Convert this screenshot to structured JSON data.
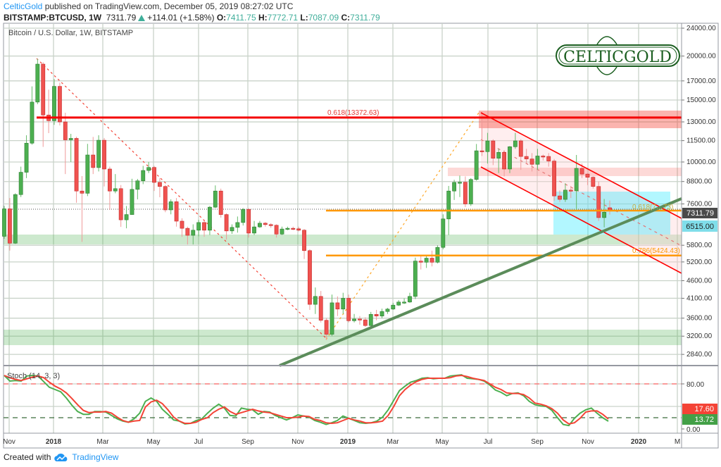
{
  "header": {
    "author": "CelticGold",
    "published_text": "published on TradingView.com, December 05, 2019 08:27:02 UTC",
    "symbol": "BITSTAMP:BTCUSD, 1W",
    "last": "7311.79",
    "change": "+114.01 (+1.58%)",
    "o_label": "O:",
    "o": "7411.75",
    "h_label": "H:",
    "h": "7772.71",
    "l_label": "L:",
    "l": "7087.09",
    "c_label": "C:",
    "c": "7311.79"
  },
  "logo_text": "CELTICGOLD",
  "footer": {
    "created_with": "Created with",
    "brand": "TradingView"
  },
  "colors": {
    "up": "#4caf50",
    "down": "#ef5350",
    "fib": "#ff9800",
    "trend": "#5b8c5a",
    "accent": "#2196f3"
  },
  "chart_data": [
    {
      "type": "candlestick",
      "title": "Bitcoin / U.S. Dollar, 1W, BITSTAMP",
      "scale": "log",
      "ylim": [
        2700,
        25500
      ],
      "y_ticks": [
        "24000.00",
        "20000.00",
        "17000.00",
        "15000.00",
        "13000.00",
        "11500.00",
        "10000.00",
        "8800.00",
        "7600.00",
        "5800.00",
        "5200.00",
        "4600.00",
        "4100.00",
        "3600.00",
        "3200.00",
        "2840.00"
      ],
      "y_tick_values": [
        24000,
        20000,
        17000,
        15000,
        13000,
        11500,
        10000,
        8800,
        7600,
        5800,
        5200,
        4600,
        4100,
        3600,
        3200,
        2840
      ],
      "x_ticks": [
        "Nov",
        "2018",
        "Mar",
        "May",
        "Jul",
        "Sep",
        "Nov",
        "2019",
        "Mar",
        "May",
        "Jul",
        "Sep",
        "Nov",
        "2020",
        "M"
      ],
      "price_badges": {
        "last": "7311.79",
        "level": "6515.00"
      },
      "fib_labels": {
        "top": "0.618(13372.63)",
        "mid": "0.618(7…73)",
        "low": "0.786(5424.43)"
      },
      "levels": {
        "fib_0618_top": 13372.63,
        "fib_0786": 5424.43
      },
      "candles_ohlc": [
        [
          6150,
          7500,
          6050,
          7360
        ],
        [
          7360,
          7900,
          5600,
          5880
        ],
        [
          5880,
          8150,
          5850,
          8080
        ],
        [
          8080,
          9700,
          7950,
          9350
        ],
        [
          9350,
          11910,
          9000,
          11310
        ],
        [
          11310,
          16400,
          11200,
          14800
        ],
        [
          14800,
          19650,
          14600,
          18970
        ],
        [
          18970,
          19200,
          11040,
          13600
        ],
        [
          13600,
          16050,
          12080,
          13100
        ],
        [
          13100,
          17200,
          12750,
          16400
        ],
        [
          16400,
          16800,
          12700,
          13000
        ],
        [
          13000,
          13800,
          9240,
          11560
        ],
        [
          11560,
          12020,
          10000,
          11670
        ],
        [
          11670,
          11800,
          7660,
          8270
        ],
        [
          8270,
          9120,
          5930,
          8150
        ],
        [
          8150,
          11260,
          8000,
          10470
        ],
        [
          10470,
          11780,
          9240,
          9640
        ],
        [
          9640,
          11910,
          9400,
          11530
        ],
        [
          11530,
          11700,
          8520,
          9550
        ],
        [
          9550,
          9700,
          7310,
          8270
        ],
        [
          8270,
          9240,
          8150,
          8400
        ],
        [
          8400,
          8600,
          6540,
          6850
        ],
        [
          6850,
          7500,
          6480,
          7090
        ],
        [
          7090,
          8960,
          7830,
          8360
        ],
        [
          8360,
          8950,
          7830,
          8840
        ],
        [
          8840,
          9750,
          8650,
          9460
        ],
        [
          9460,
          10000,
          9300,
          9650
        ],
        [
          9650,
          9750,
          8270,
          8750
        ],
        [
          8750,
          9000,
          7940,
          8520
        ],
        [
          8520,
          8600,
          7200,
          7310
        ],
        [
          7310,
          7830,
          7100,
          7710
        ],
        [
          7710,
          7900,
          6550,
          6790
        ],
        [
          6790,
          6920,
          6130,
          6480
        ],
        [
          6480,
          6550,
          5830,
          6190
        ],
        [
          6190,
          6650,
          5830,
          6400
        ],
        [
          6400,
          6850,
          6150,
          6730
        ],
        [
          6730,
          6800,
          6130,
          6400
        ],
        [
          6400,
          7500,
          6200,
          7440
        ],
        [
          7440,
          8580,
          7400,
          8270
        ],
        [
          8270,
          8400,
          6950,
          7090
        ],
        [
          7090,
          7150,
          6020,
          6370
        ],
        [
          6370,
          6650,
          6250,
          6520
        ],
        [
          6520,
          7000,
          6300,
          6730
        ],
        [
          6730,
          7400,
          6600,
          7330
        ],
        [
          7330,
          7400,
          6100,
          6280
        ],
        [
          6280,
          6800,
          6200,
          6540
        ],
        [
          6540,
          6800,
          6500,
          6700
        ],
        [
          6700,
          6750,
          6550,
          6640
        ],
        [
          6640,
          6700,
          6500,
          6610
        ],
        [
          6610,
          6650,
          6100,
          6240
        ],
        [
          6240,
          6550,
          6200,
          6450
        ],
        [
          6450,
          6550,
          6400,
          6480
        ],
        [
          6480,
          6550,
          6400,
          6460
        ],
        [
          6460,
          6550,
          6350,
          6400
        ],
        [
          6400,
          6450,
          5300,
          5600
        ],
        [
          5600,
          5650,
          3800,
          3940
        ],
        [
          3940,
          4400,
          3700,
          4150
        ],
        [
          4150,
          4300,
          3500,
          3550
        ],
        [
          3550,
          3600,
          3122,
          3240
        ],
        [
          3240,
          4200,
          3200,
          3980
        ],
        [
          3980,
          4150,
          3650,
          3820
        ],
        [
          3820,
          4250,
          3700,
          4100
        ],
        [
          4100,
          4200,
          3500,
          3540
        ],
        [
          3540,
          3700,
          3500,
          3580
        ],
        [
          3580,
          3650,
          3450,
          3560
        ],
        [
          3560,
          3620,
          3400,
          3430
        ],
        [
          3430,
          3750,
          3380,
          3690
        ],
        [
          3690,
          3800,
          3550,
          3650
        ],
        [
          3650,
          3830,
          3600,
          3760
        ],
        [
          3760,
          3850,
          3700,
          3820
        ],
        [
          3820,
          3980,
          3800,
          3920
        ],
        [
          3920,
          4050,
          3900,
          4000
        ],
        [
          4000,
          4100,
          3950,
          4000
        ],
        [
          4000,
          4250,
          3980,
          4150
        ],
        [
          4150,
          5350,
          4080,
          5230
        ],
        [
          5230,
          5450,
          4950,
          5190
        ],
        [
          5190,
          5450,
          5000,
          5330
        ],
        [
          5330,
          5600,
          5050,
          5190
        ],
        [
          5190,
          5800,
          5150,
          5720
        ],
        [
          5720,
          7100,
          5650,
          6890
        ],
        [
          6890,
          8550,
          6200,
          8270
        ],
        [
          8270,
          8900,
          7800,
          8750
        ],
        [
          8750,
          9150,
          7950,
          8760
        ],
        [
          8760,
          9100,
          7450,
          7600
        ],
        [
          7600,
          9000,
          7500,
          8920
        ],
        [
          8920,
          11250,
          8850,
          10760
        ],
        [
          10760,
          13880,
          10400,
          10700
        ],
        [
          10700,
          12100,
          9900,
          11480
        ],
        [
          11480,
          11600,
          9800,
          10250
        ],
        [
          10250,
          10900,
          9300,
          10650
        ],
        [
          10650,
          10800,
          9100,
          9550
        ],
        [
          9550,
          11100,
          9300,
          11050
        ],
        [
          11050,
          12100,
          10900,
          11480
        ],
        [
          11480,
          11600,
          9500,
          10370
        ],
        [
          10370,
          10900,
          9900,
          10200
        ],
        [
          10200,
          10600,
          9400,
          9850
        ],
        [
          9850,
          10900,
          9500,
          10400
        ],
        [
          10400,
          10500,
          10100,
          10370
        ],
        [
          10370,
          10600,
          9700,
          10060
        ],
        [
          10060,
          10200,
          7750,
          8010
        ],
        [
          8010,
          8300,
          7700,
          7830
        ],
        [
          7830,
          8700,
          7700,
          8320
        ],
        [
          8320,
          8550,
          7900,
          8280
        ],
        [
          8280,
          10470,
          7280,
          9590
        ],
        [
          9590,
          9900,
          9000,
          9240
        ],
        [
          9240,
          9300,
          8600,
          9050
        ],
        [
          9050,
          9100,
          8400,
          8520
        ],
        [
          8520,
          8800,
          6800,
          6950
        ],
        [
          6950,
          7850,
          6520,
          7197.78
        ],
        [
          7411.75,
          7772.71,
          7087.09,
          7311.79
        ]
      ]
    },
    {
      "type": "line",
      "title": "Stoch (14, 3, 3)",
      "ylim": [
        0,
        100
      ],
      "y_ticks": [
        "80.00",
        "0.00"
      ],
      "y_tick_values": [
        80,
        0
      ],
      "bands": [
        80,
        20
      ],
      "last_badges": {
        "d": "17.60",
        "k": "13.72"
      },
      "series": [
        {
          "name": "%K",
          "color": "#4caf50",
          "values": [
            95,
            85,
            86,
            85,
            94,
            95,
            94,
            84,
            74,
            70,
            66,
            55,
            42,
            31,
            26,
            26,
            31,
            31,
            30,
            24,
            18,
            14,
            12,
            18,
            28,
            49,
            55,
            49,
            35,
            26,
            16,
            14,
            9,
            10,
            15,
            18,
            28,
            37,
            44,
            37,
            24,
            23,
            37,
            35,
            34,
            26,
            31,
            30,
            24,
            20,
            16,
            20,
            25,
            23,
            21,
            15,
            12,
            8,
            11,
            15,
            23,
            19,
            15,
            11,
            10,
            11,
            14,
            21,
            34,
            51,
            68,
            76,
            83,
            86,
            90,
            91,
            89,
            90,
            90,
            94,
            95,
            96,
            90,
            89,
            88,
            85,
            78,
            69,
            65,
            59,
            63,
            64,
            59,
            49,
            43,
            41,
            40,
            33,
            20,
            8,
            6,
            19,
            28,
            34,
            37,
            28,
            20,
            13.72
          ]
        },
        {
          "name": "%D",
          "color": "#f44336",
          "values": [
            95,
            91,
            88,
            86,
            89,
            92,
            94,
            91,
            83,
            76,
            71,
            64,
            54,
            43,
            33,
            29,
            30,
            30,
            31,
            28,
            21,
            15,
            12,
            14,
            15,
            39,
            48,
            51,
            45,
            34,
            21,
            14,
            10,
            10,
            12,
            17,
            20,
            29,
            35,
            39,
            31,
            26,
            29,
            32,
            35,
            32,
            30,
            29,
            26,
            23,
            20,
            20,
            21,
            23,
            22,
            17,
            15,
            11,
            10,
            11,
            15,
            19,
            16,
            14,
            11,
            11,
            12,
            14,
            24,
            40,
            59,
            70,
            78,
            84,
            88,
            90,
            90,
            90,
            90,
            91,
            94,
            95,
            93,
            90,
            88,
            86,
            80,
            74,
            70,
            64,
            63,
            63,
            61,
            55,
            46,
            44,
            41,
            36,
            28,
            16,
            9,
            11,
            19,
            30,
            32,
            32,
            26,
            17.6
          ]
        }
      ]
    }
  ]
}
